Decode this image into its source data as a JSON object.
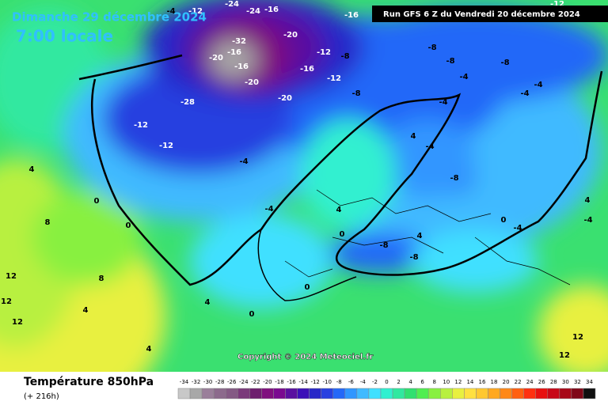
{
  "header": {
    "date": "Dimanche 29 décembre 2024",
    "time": "7:00 locale",
    "run": "Run GFS 6 Z du Vendredi 20 décembre 2024"
  },
  "copyright": "Copyright © 2024 Meteociel.fr",
  "footer": {
    "title": "Température 850hPa",
    "lead": "(+ 216h)"
  },
  "scale": {
    "values": [
      -34,
      -32,
      -30,
      -28,
      -26,
      -24,
      -22,
      -20,
      -18,
      -16,
      -14,
      -12,
      -10,
      -8,
      -6,
      -4,
      -2,
      0,
      2,
      4,
      6,
      8,
      10,
      12,
      14,
      16,
      18,
      20,
      22,
      24,
      26,
      28,
      30,
      32,
      34
    ],
    "colors": [
      "#c8c8c8",
      "#a8a8a8",
      "#9a7f9a",
      "#8c6a8c",
      "#845a84",
      "#7a3a7a",
      "#6e1e6e",
      "#80107e",
      "#7a0a90",
      "#5a10a0",
      "#3c10b8",
      "#2828c8",
      "#2840e0",
      "#2468f8",
      "#3096ff",
      "#40baff",
      "#40e0ff",
      "#30f0d0",
      "#30e8a0",
      "#30e070",
      "#50ee50",
      "#88f040",
      "#b8f040",
      "#e8f040",
      "#ffe040",
      "#ffc830",
      "#ffa820",
      "#ff8818",
      "#ff6010",
      "#ff3010",
      "#e81010",
      "#c80818",
      "#a80818",
      "#800818",
      "#101010"
    ]
  },
  "map_labels": [
    -24,
    -16,
    -12,
    -4,
    -24,
    -20,
    -16,
    -32,
    -16,
    -16,
    -20,
    -20,
    -20,
    -28,
    -12,
    -12,
    -16,
    -12,
    -12,
    -8,
    -8,
    -8,
    -8,
    -12,
    -4,
    -4,
    -4,
    -4,
    -8,
    -4,
    -4,
    4,
    -4,
    -8,
    4,
    0,
    -8,
    -8,
    4,
    0,
    0,
    4,
    8,
    12,
    12,
    12,
    4,
    0,
    0,
    4,
    4,
    12,
    12,
    8,
    4,
    -4,
    0,
    -4
  ]
}
